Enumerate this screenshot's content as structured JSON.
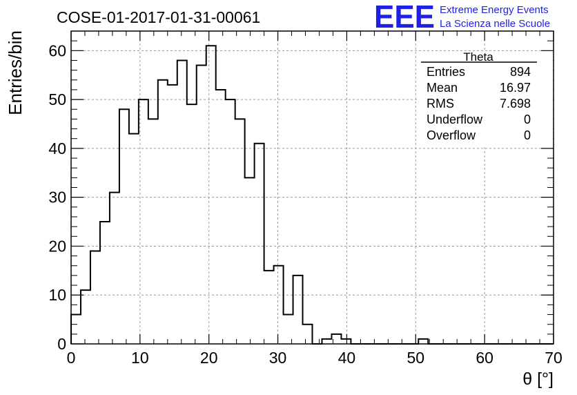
{
  "chart_data": {
    "type": "bar",
    "title": "COSE-01-2017-01-31-00061",
    "xlabel": "θ [°]",
    "ylabel": "Entries/bin",
    "xlim": [
      0,
      70
    ],
    "ylim": [
      0,
      64
    ],
    "x_ticks": [
      0,
      10,
      20,
      30,
      40,
      50,
      60,
      70
    ],
    "y_ticks": [
      0,
      10,
      20,
      30,
      40,
      50,
      60
    ],
    "bin_width": 1.4,
    "bin_edges_start": 0,
    "values": [
      6,
      11,
      19,
      25,
      31,
      48,
      43,
      50,
      46,
      54,
      53,
      58,
      49,
      57,
      61,
      52,
      50,
      46,
      34,
      41,
      15,
      16,
      6,
      14,
      4,
      0,
      1,
      2,
      1,
      0,
      0,
      0,
      0,
      0,
      0,
      0,
      1,
      0,
      0,
      0,
      0,
      0,
      0,
      0,
      0,
      0,
      0,
      0,
      0,
      0
    ],
    "grid": true,
    "stats_box": {
      "title": "Theta",
      "rows": [
        {
          "label": "Entries",
          "value": "894"
        },
        {
          "label": "Mean",
          "value": "16.97"
        },
        {
          "label": "RMS",
          "value": "7.698"
        },
        {
          "label": "Underflow",
          "value": "0"
        },
        {
          "label": "Overflow",
          "value": "0"
        }
      ]
    }
  },
  "logo": {
    "mark": "EEE",
    "line1": "Extreme Energy Events",
    "line2": "La Scienza nelle Scuole",
    "color": "#1f1fe6"
  }
}
